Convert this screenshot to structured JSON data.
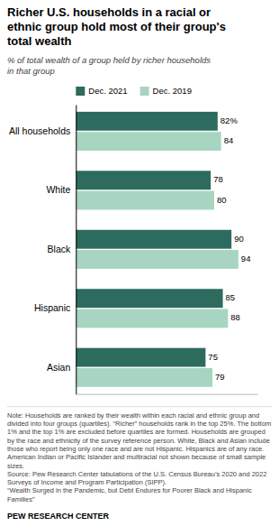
{
  "chart_data": {
    "type": "bar",
    "orientation": "horizontal",
    "title": "Richer U.S. households in a racial or\nethnic group hold most of their group's\ntotal wealth",
    "subtitle": "% of total wealth of a group held by richer households\nin that group",
    "categories": [
      "All households",
      "White",
      "Black",
      "Hispanic",
      "Asian"
    ],
    "series": [
      {
        "name": "Dec. 2021",
        "color": "#2d6b5e",
        "values": [
          82,
          78,
          90,
          85,
          75
        ],
        "value_labels": [
          "82%",
          "78",
          "90",
          "85",
          "75"
        ]
      },
      {
        "name": "Dec. 2019",
        "color": "#a8d5c2",
        "values": [
          84,
          80,
          94,
          88,
          79
        ]
      }
    ],
    "xlim": [
      0,
      105
    ],
    "data_labels": true,
    "tick_labels": "y",
    "grid": false,
    "legend": "top",
    "note": "Note: Households are ranked by their wealth within each racial and ethnic group and divided into four groups (quartiles). “Richer” households rank in the top 25%. The bottom 1% and the top 1% are excluded before quartiles are formed. Households are grouped by the race and ethnicity of the survey reference person. White, Black and Asian include those who report being only one race and are not Hispanic. Hispanics are of any race. American Indian or Pacific Islander and multiracial not shown because of small sample sizes.\nSource: Pew Research Center tabulations of the U.S. Census Bureau’s 2020 and 2022 Surveys of Income and Program Participation (SIPP).\n“Wealth Surged in the Pandemic, but Debt Endures for Poorer Black and Hispanic Families”",
    "footer": "PEW RESEARCH CENTER"
  }
}
